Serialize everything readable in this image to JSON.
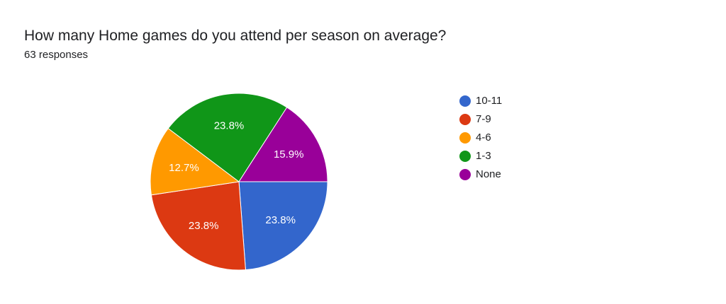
{
  "header": {
    "title": "How many Home games do you attend per season on average?",
    "subtitle": "63 responses"
  },
  "chart_data": {
    "type": "pie",
    "title": "How many Home games do you attend per season on average?",
    "total_label": "63 responses",
    "legend_placement": "right",
    "slices": [
      {
        "name": "10-11",
        "value": 23.8,
        "label": "23.8%",
        "color": "#3366cc"
      },
      {
        "name": "7-9",
        "value": 23.8,
        "label": "23.8%",
        "color": "#dc3912"
      },
      {
        "name": "4-6",
        "value": 12.7,
        "label": "12.7%",
        "color": "#ff9900"
      },
      {
        "name": "1-3",
        "value": 23.8,
        "label": "23.8%",
        "color": "#109618"
      },
      {
        "name": "None",
        "value": 15.9,
        "label": "15.9%",
        "color": "#990099"
      }
    ]
  }
}
